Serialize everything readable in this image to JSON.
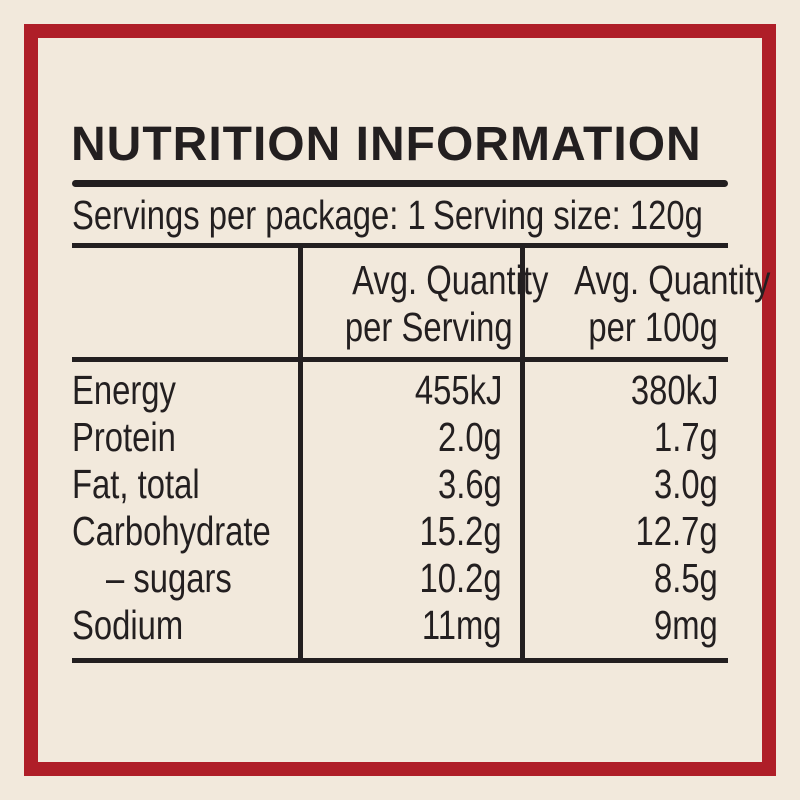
{
  "label": {
    "title": "NUTRITION INFORMATION",
    "servings_per_package": "Servings per package: 1",
    "serving_size": "Serving size: 120g",
    "columns": {
      "per_serving": [
        "Avg. Quantity",
        "per Serving"
      ],
      "per_100g": [
        "Avg. Quantity",
        "per 100g"
      ]
    },
    "rows": [
      {
        "name": "Energy",
        "per_serving": "455kJ",
        "per_100g": "380kJ"
      },
      {
        "name": "Protein",
        "per_serving": "2.0g",
        "per_100g": "1.7g"
      },
      {
        "name": "Fat, total",
        "per_serving": "3.6g",
        "per_100g": "3.0g"
      },
      {
        "name": "Carbohydrate",
        "per_serving": "15.2g",
        "per_100g": "12.7g"
      },
      {
        "name": "– sugars",
        "per_serving": "10.2g",
        "per_100g": "8.5g"
      },
      {
        "name": "Sodium",
        "per_serving": "11mg",
        "per_100g": "9mg"
      }
    ],
    "colors": {
      "background": "#F2E9DC",
      "frame_red": "#AF1E28",
      "ink": "#231F20"
    }
  }
}
